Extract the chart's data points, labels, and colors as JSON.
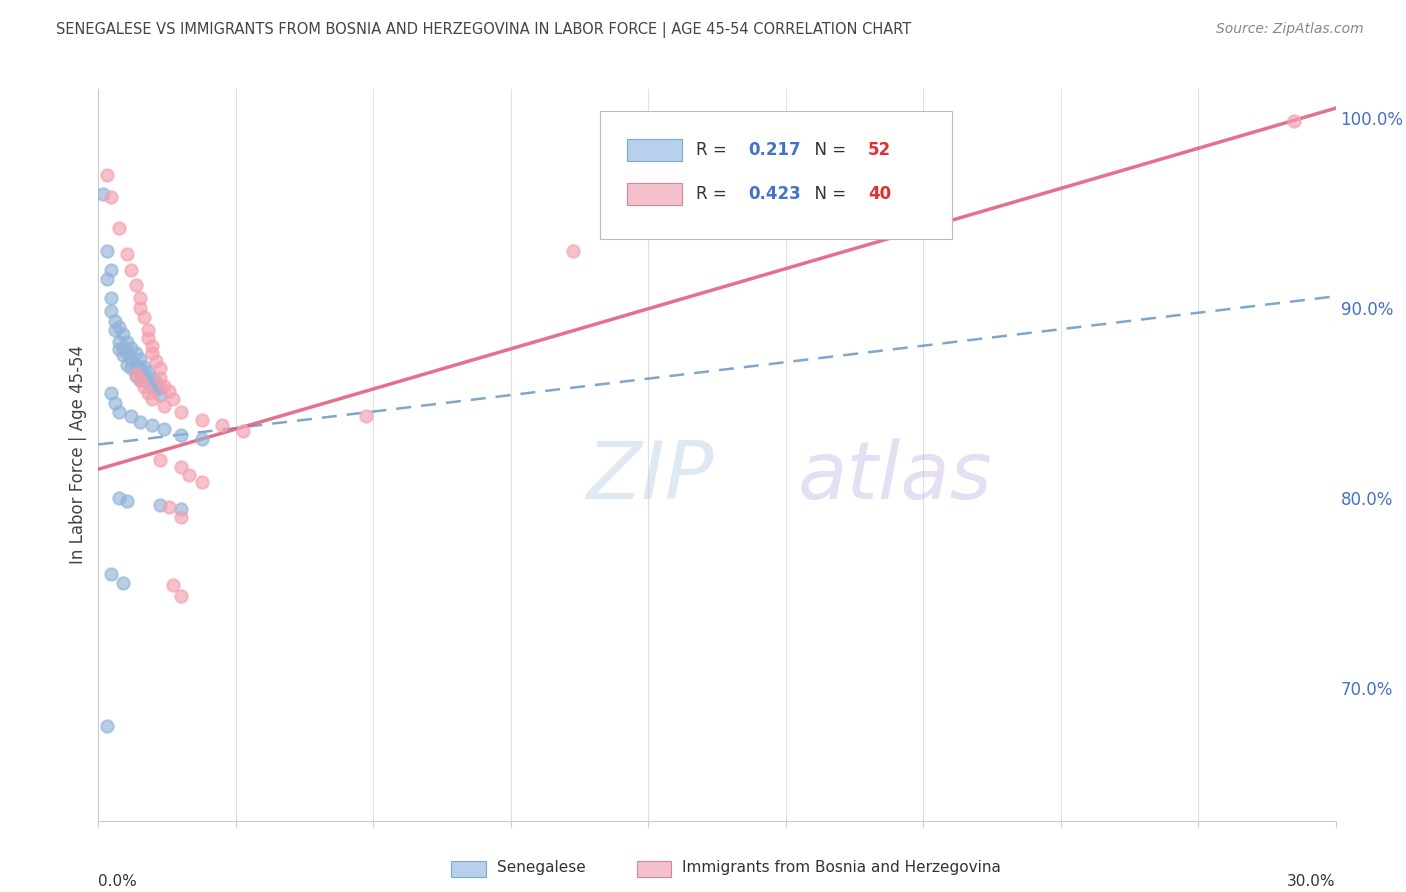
{
  "title": "SENEGALESE VS IMMIGRANTS FROM BOSNIA AND HERZEGOVINA IN LABOR FORCE | AGE 45-54 CORRELATION CHART",
  "source": "Source: ZipAtlas.com",
  "ylabel": "In Labor Force | Age 45-54",
  "xmin": 0.0,
  "xmax": 0.3,
  "ymin": 0.63,
  "ymax": 1.015,
  "right_yticks": [
    0.7,
    0.8,
    0.9,
    1.0
  ],
  "right_yticklabels": [
    "70.0%",
    "80.0%",
    "90.0%",
    "100.0%"
  ],
  "senegalese_color": "#92b4d8",
  "bosnia_color": "#f4a0b0",
  "senegalese_line_color": "#5588bb",
  "bosnia_line_color": "#e05878",
  "title_color": "#444444",
  "source_color": "#888888",
  "grid_color": "#e0e0e0",
  "right_axis_color": "#4472c4",
  "legend_R1_color": "#4472c4",
  "legend_N1_color": "#e03030",
  "legend_R2_color": "#4472c4",
  "legend_N2_color": "#e03030",
  "blue_trend_x": [
    0.0,
    0.3
  ],
  "blue_trend_y": [
    0.828,
    0.906
  ],
  "pink_trend_x": [
    0.0,
    0.3
  ],
  "pink_trend_y": [
    0.815,
    1.005
  ],
  "senegalese_points": [
    [
      0.001,
      0.96
    ],
    [
      0.002,
      0.93
    ],
    [
      0.002,
      0.915
    ],
    [
      0.003,
      0.92
    ],
    [
      0.003,
      0.905
    ],
    [
      0.003,
      0.898
    ],
    [
      0.004,
      0.893
    ],
    [
      0.004,
      0.888
    ],
    [
      0.005,
      0.89
    ],
    [
      0.005,
      0.882
    ],
    [
      0.005,
      0.878
    ],
    [
      0.006,
      0.886
    ],
    [
      0.006,
      0.879
    ],
    [
      0.006,
      0.875
    ],
    [
      0.007,
      0.882
    ],
    [
      0.007,
      0.876
    ],
    [
      0.007,
      0.87
    ],
    [
      0.008,
      0.879
    ],
    [
      0.008,
      0.873
    ],
    [
      0.008,
      0.868
    ],
    [
      0.009,
      0.876
    ],
    [
      0.009,
      0.87
    ],
    [
      0.009,
      0.864
    ],
    [
      0.01,
      0.873
    ],
    [
      0.01,
      0.868
    ],
    [
      0.01,
      0.862
    ],
    [
      0.011,
      0.869
    ],
    [
      0.011,
      0.864
    ],
    [
      0.012,
      0.866
    ],
    [
      0.012,
      0.861
    ],
    [
      0.013,
      0.863
    ],
    [
      0.013,
      0.858
    ],
    [
      0.014,
      0.861
    ],
    [
      0.014,
      0.857
    ],
    [
      0.015,
      0.858
    ],
    [
      0.015,
      0.854
    ],
    [
      0.003,
      0.855
    ],
    [
      0.004,
      0.85
    ],
    [
      0.005,
      0.845
    ],
    [
      0.008,
      0.843
    ],
    [
      0.01,
      0.84
    ],
    [
      0.013,
      0.838
    ],
    [
      0.016,
      0.836
    ],
    [
      0.02,
      0.833
    ],
    [
      0.025,
      0.831
    ],
    [
      0.005,
      0.8
    ],
    [
      0.007,
      0.798
    ],
    [
      0.015,
      0.796
    ],
    [
      0.02,
      0.794
    ],
    [
      0.003,
      0.76
    ],
    [
      0.006,
      0.755
    ],
    [
      0.002,
      0.68
    ]
  ],
  "bosnia_points": [
    [
      0.002,
      0.97
    ],
    [
      0.003,
      0.958
    ],
    [
      0.005,
      0.942
    ],
    [
      0.007,
      0.928
    ],
    [
      0.008,
      0.92
    ],
    [
      0.009,
      0.912
    ],
    [
      0.01,
      0.905
    ],
    [
      0.01,
      0.9
    ],
    [
      0.011,
      0.895
    ],
    [
      0.012,
      0.888
    ],
    [
      0.012,
      0.884
    ],
    [
      0.013,
      0.88
    ],
    [
      0.013,
      0.876
    ],
    [
      0.014,
      0.872
    ],
    [
      0.015,
      0.868
    ],
    [
      0.015,
      0.863
    ],
    [
      0.016,
      0.859
    ],
    [
      0.017,
      0.856
    ],
    [
      0.018,
      0.852
    ],
    [
      0.009,
      0.865
    ],
    [
      0.01,
      0.862
    ],
    [
      0.011,
      0.858
    ],
    [
      0.012,
      0.855
    ],
    [
      0.013,
      0.852
    ],
    [
      0.016,
      0.848
    ],
    [
      0.02,
      0.845
    ],
    [
      0.025,
      0.841
    ],
    [
      0.03,
      0.838
    ],
    [
      0.035,
      0.835
    ],
    [
      0.065,
      0.843
    ],
    [
      0.015,
      0.82
    ],
    [
      0.02,
      0.816
    ],
    [
      0.022,
      0.812
    ],
    [
      0.025,
      0.808
    ],
    [
      0.017,
      0.795
    ],
    [
      0.02,
      0.79
    ],
    [
      0.018,
      0.754
    ],
    [
      0.02,
      0.748
    ],
    [
      0.115,
      0.93
    ],
    [
      0.29,
      0.998
    ]
  ]
}
